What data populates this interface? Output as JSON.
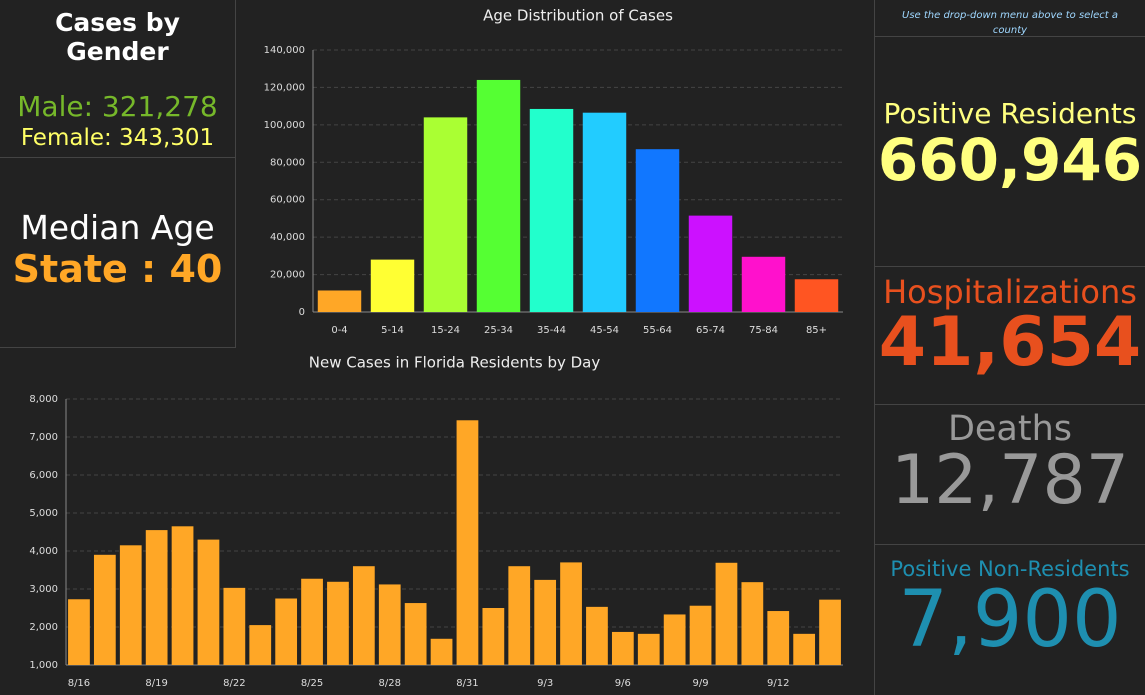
{
  "panels": {
    "gender_title": "Cases by Gender",
    "male": "Male: 321,278",
    "female": "Female: 343,301",
    "median_label": "Median Age",
    "median_value": "State : 40",
    "note": "Use the drop-down menu above to select a county",
    "positive_label": "Positive Residents",
    "positive_value": "660,946",
    "hosp_label": "Hospitalizations",
    "hosp_value": "41,654",
    "deaths_label": "Deaths",
    "deaths_value": "12,787",
    "nonres_label": "Positive Non-Residents",
    "nonres_value": "7,900"
  },
  "chart_data": [
    {
      "type": "bar",
      "title": "Age Distribution of Cases",
      "categories": [
        "0-4",
        "5-14",
        "15-24",
        "25-34",
        "35-44",
        "45-54",
        "55-64",
        "65-74",
        "75-84",
        "85+"
      ],
      "values": [
        11500,
        28000,
        104000,
        124000,
        108500,
        106500,
        87000,
        51500,
        29500,
        17500
      ],
      "colors": [
        "#ffa726",
        "#ffff33",
        "#aaff33",
        "#55ff33",
        "#22ffcc",
        "#22ccff",
        "#1177ff",
        "#cc11ff",
        "#ff11cc",
        "#ff5522"
      ],
      "ylim": [
        0,
        140000
      ],
      "yticks": [
        0,
        {
          "value": 20000,
          "label": "20,000"
        },
        {
          "value": 40000,
          "label": "40,000"
        },
        {
          "value": 60000,
          "label": "60,000"
        },
        {
          "value": 80000,
          "label": "80,000"
        },
        {
          "value": 100000,
          "label": "100,000"
        },
        {
          "value": 120000,
          "label": "120,000"
        },
        {
          "value": 140000,
          "label": "140,000"
        }
      ],
      "grid": true
    },
    {
      "type": "bar",
      "title": "New Cases in Florida Residents by Day",
      "categories": [
        "8/16",
        null,
        null,
        "8/19",
        null,
        null,
        "8/22",
        null,
        null,
        "8/25",
        null,
        null,
        "8/28",
        null,
        null,
        "8/31",
        null,
        null,
        "9/3",
        null,
        null,
        "9/6",
        null,
        null,
        "9/9",
        null,
        null,
        "9/12",
        null,
        null
      ],
      "values": [
        2730,
        3900,
        4150,
        4550,
        4650,
        4300,
        3030,
        2050,
        2750,
        3270,
        3190,
        3600,
        3120,
        2630,
        1690,
        7440,
        2500,
        3600,
        3240,
        3700,
        2530,
        1870,
        1820,
        2330,
        2560,
        3690,
        3180,
        2420,
        1820,
        2720
      ],
      "color": "#ffa726",
      "ylim": [
        1000,
        8000
      ],
      "yticks": [
        {
          "value": 1000,
          "label": "1,000"
        },
        {
          "value": 2000,
          "label": "2,000"
        },
        {
          "value": 3000,
          "label": "3,000"
        },
        {
          "value": 4000,
          "label": "4,000"
        },
        {
          "value": 5000,
          "label": "5,000"
        },
        {
          "value": 6000,
          "label": "6,000"
        },
        {
          "value": 7000,
          "label": "7,000"
        },
        {
          "value": 8000,
          "label": "8,000"
        }
      ],
      "grid": true
    }
  ]
}
